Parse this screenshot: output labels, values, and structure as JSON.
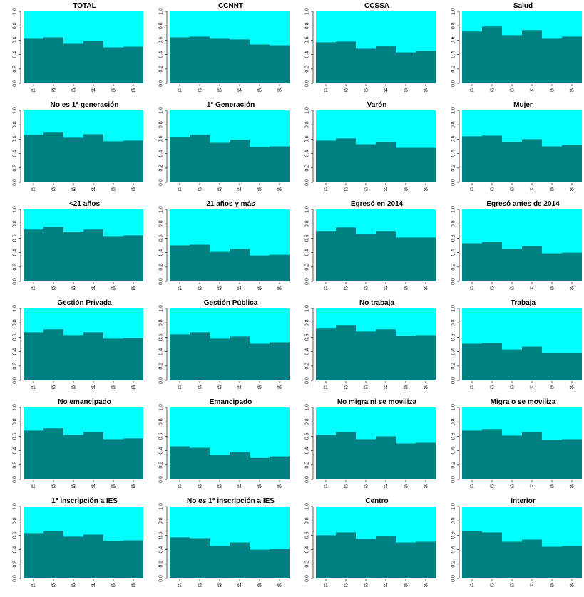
{
  "colors": {
    "fill_lower": "#008080",
    "fill_upper": "#00ffff",
    "axis": "#333333"
  },
  "chart_data": [
    {
      "type": "area",
      "title": "TOTAL",
      "x": [
        "t1",
        "t2",
        "t3",
        "t4",
        "t5",
        "t6"
      ],
      "values": [
        0.62,
        0.64,
        0.55,
        0.59,
        0.5,
        0.51
      ],
      "ylim": [
        0,
        1
      ],
      "yticks": [
        "0.0",
        "0.2",
        "0.4",
        "0.6",
        "0.8",
        "1.0"
      ]
    },
    {
      "type": "area",
      "title": "CCNNT",
      "x": [
        "t1",
        "t2",
        "t3",
        "t4",
        "t5",
        "t6"
      ],
      "values": [
        0.64,
        0.65,
        0.62,
        0.61,
        0.54,
        0.53
      ],
      "ylim": [
        0,
        1
      ],
      "yticks": [
        "0.0",
        "0.2",
        "0.4",
        "0.6",
        "0.8",
        "1.0"
      ]
    },
    {
      "type": "area",
      "title": "CCSSA",
      "x": [
        "t1",
        "t2",
        "t3",
        "t4",
        "t5",
        "t6"
      ],
      "values": [
        0.57,
        0.58,
        0.48,
        0.52,
        0.43,
        0.45
      ],
      "ylim": [
        0,
        1
      ],
      "yticks": [
        "0.0",
        "0.2",
        "0.4",
        "0.6",
        "0.8",
        "1.0"
      ]
    },
    {
      "type": "area",
      "title": "Salud",
      "x": [
        "t1",
        "t2",
        "t3",
        "t4",
        "t5",
        "t6"
      ],
      "values": [
        0.72,
        0.79,
        0.67,
        0.74,
        0.62,
        0.65
      ],
      "ylim": [
        0,
        1
      ],
      "yticks": [
        "0.0",
        "0.2",
        "0.4",
        "0.6",
        "0.8",
        "1.0"
      ]
    },
    {
      "type": "area",
      "title": "No es 1° generación",
      "x": [
        "t1",
        "t2",
        "t3",
        "t4",
        "t5",
        "t6"
      ],
      "values": [
        0.66,
        0.7,
        0.62,
        0.67,
        0.57,
        0.58
      ],
      "ylim": [
        0,
        1
      ],
      "yticks": [
        "0.0",
        "0.2",
        "0.4",
        "0.6",
        "0.8",
        "1.0"
      ]
    },
    {
      "type": "area",
      "title": "1° Generación",
      "x": [
        "t1",
        "t2",
        "t3",
        "t4",
        "t5",
        "t6"
      ],
      "values": [
        0.63,
        0.66,
        0.55,
        0.59,
        0.49,
        0.5
      ],
      "ylim": [
        0,
        1
      ],
      "yticks": [
        "0.0",
        "0.2",
        "0.4",
        "0.6",
        "0.8",
        "1.0"
      ]
    },
    {
      "type": "area",
      "title": "Varón",
      "x": [
        "t1",
        "t2",
        "t3",
        "t4",
        "t5",
        "t6"
      ],
      "values": [
        0.58,
        0.61,
        0.53,
        0.56,
        0.48,
        0.48
      ],
      "ylim": [
        0,
        1
      ],
      "yticks": [
        "0.0",
        "0.2",
        "0.4",
        "0.6",
        "0.8",
        "1.0"
      ]
    },
    {
      "type": "area",
      "title": "Mujer",
      "x": [
        "t1",
        "t2",
        "t3",
        "t4",
        "t5",
        "t6"
      ],
      "values": [
        0.64,
        0.65,
        0.56,
        0.6,
        0.5,
        0.52
      ],
      "ylim": [
        0,
        1
      ],
      "yticks": [
        "0.0",
        "0.2",
        "0.4",
        "0.6",
        "0.8",
        "1.0"
      ]
    },
    {
      "type": "area",
      "title": "<21 años",
      "x": [
        "t1",
        "t2",
        "t3",
        "t4",
        "t5",
        "t6"
      ],
      "values": [
        0.72,
        0.76,
        0.69,
        0.72,
        0.63,
        0.64
      ],
      "ylim": [
        0,
        1
      ],
      "yticks": [
        "0.0",
        "0.2",
        "0.4",
        "0.6",
        "0.8",
        "1.0"
      ]
    },
    {
      "type": "area",
      "title": "21 años y más",
      "x": [
        "t1",
        "t2",
        "t3",
        "t4",
        "t5",
        "t6"
      ],
      "values": [
        0.5,
        0.51,
        0.41,
        0.45,
        0.36,
        0.37
      ],
      "ylim": [
        0,
        1
      ],
      "yticks": [
        "0.0",
        "0.2",
        "0.4",
        "0.6",
        "0.8",
        "1.0"
      ]
    },
    {
      "type": "area",
      "title": "Egresó en 2014",
      "x": [
        "t1",
        "t2",
        "t3",
        "t4",
        "t5",
        "t6"
      ],
      "values": [
        0.7,
        0.75,
        0.66,
        0.7,
        0.61,
        0.61
      ],
      "ylim": [
        0,
        1
      ],
      "yticks": [
        "0.0",
        "0.2",
        "0.4",
        "0.6",
        "0.8",
        "1.0"
      ]
    },
    {
      "type": "area",
      "title": "Egresó antes de 2014",
      "x": [
        "t1",
        "t2",
        "t3",
        "t4",
        "t5",
        "t6"
      ],
      "values": [
        0.53,
        0.55,
        0.45,
        0.49,
        0.39,
        0.4
      ],
      "ylim": [
        0,
        1
      ],
      "yticks": [
        "0.0",
        "0.2",
        "0.4",
        "0.6",
        "0.8",
        "1.0"
      ]
    },
    {
      "type": "area",
      "title": "Gestión Privada",
      "x": [
        "t1",
        "t2",
        "t3",
        "t4",
        "t5",
        "t6"
      ],
      "values": [
        0.67,
        0.71,
        0.63,
        0.67,
        0.58,
        0.59
      ],
      "ylim": [
        0,
        1
      ],
      "yticks": [
        "0.0",
        "0.2",
        "0.4",
        "0.6",
        "0.8",
        "1.0"
      ]
    },
    {
      "type": "area",
      "title": "Gestión Pública",
      "x": [
        "t1",
        "t2",
        "t3",
        "t4",
        "t5",
        "t6"
      ],
      "values": [
        0.64,
        0.67,
        0.58,
        0.61,
        0.51,
        0.53
      ],
      "ylim": [
        0,
        1
      ],
      "yticks": [
        "0.0",
        "0.2",
        "0.4",
        "0.6",
        "0.8",
        "1.0"
      ]
    },
    {
      "type": "area",
      "title": "No trabaja",
      "x": [
        "t1",
        "t2",
        "t3",
        "t4",
        "t5",
        "t6"
      ],
      "values": [
        0.72,
        0.77,
        0.68,
        0.71,
        0.62,
        0.63
      ],
      "ylim": [
        0,
        1
      ],
      "yticks": [
        "0.0",
        "0.2",
        "0.4",
        "0.6",
        "0.8",
        "1.0"
      ]
    },
    {
      "type": "area",
      "title": "Trabaja",
      "x": [
        "t1",
        "t2",
        "t3",
        "t4",
        "t5",
        "t6"
      ],
      "values": [
        0.51,
        0.52,
        0.43,
        0.47,
        0.38,
        0.38
      ],
      "ylim": [
        0,
        1
      ],
      "yticks": [
        "0.0",
        "0.2",
        "0.4",
        "0.6",
        "0.8",
        "1.0"
      ]
    },
    {
      "type": "area",
      "title": "No emancipado",
      "x": [
        "t1",
        "t2",
        "t3",
        "t4",
        "t5",
        "t6"
      ],
      "values": [
        0.68,
        0.71,
        0.62,
        0.66,
        0.56,
        0.57
      ],
      "ylim": [
        0,
        1
      ],
      "yticks": [
        "0.0",
        "0.2",
        "0.4",
        "0.6",
        "0.8",
        "1.0"
      ]
    },
    {
      "type": "area",
      "title": "Emancipado",
      "x": [
        "t1",
        "t2",
        "t3",
        "t4",
        "t5",
        "t6"
      ],
      "values": [
        0.46,
        0.44,
        0.34,
        0.38,
        0.3,
        0.32
      ],
      "ylim": [
        0,
        1
      ],
      "yticks": [
        "0.0",
        "0.2",
        "0.4",
        "0.6",
        "0.8",
        "1.0"
      ]
    },
    {
      "type": "area",
      "title": "No migra ni se moviliza",
      "x": [
        "t1",
        "t2",
        "t3",
        "t4",
        "t5",
        "t6"
      ],
      "values": [
        0.62,
        0.66,
        0.56,
        0.6,
        0.5,
        0.51
      ],
      "ylim": [
        0,
        1
      ],
      "yticks": [
        "0.0",
        "0.2",
        "0.4",
        "0.6",
        "0.8",
        "1.0"
      ]
    },
    {
      "type": "area",
      "title": "Migra o se moviliza",
      "x": [
        "t1",
        "t2",
        "t3",
        "t4",
        "t5",
        "t6"
      ],
      "values": [
        0.68,
        0.7,
        0.61,
        0.66,
        0.55,
        0.56
      ],
      "ylim": [
        0,
        1
      ],
      "yticks": [
        "0.0",
        "0.2",
        "0.4",
        "0.6",
        "0.8",
        "1.0"
      ]
    },
    {
      "type": "area",
      "title": "1° inscripción a IES",
      "x": [
        "t1",
        "t2",
        "t3",
        "t4",
        "t5",
        "t6"
      ],
      "values": [
        0.63,
        0.66,
        0.58,
        0.61,
        0.52,
        0.53
      ],
      "ylim": [
        0,
        1
      ],
      "yticks": [
        "0.0",
        "0.2",
        "0.4",
        "0.6",
        "0.8",
        "1.0"
      ]
    },
    {
      "type": "area",
      "title": "No es 1° inscripción a IES",
      "x": [
        "t1",
        "t2",
        "t3",
        "t4",
        "t5",
        "t6"
      ],
      "values": [
        0.57,
        0.56,
        0.45,
        0.5,
        0.4,
        0.41
      ],
      "ylim": [
        0,
        1
      ],
      "yticks": [
        "0.0",
        "0.2",
        "0.4",
        "0.6",
        "0.8",
        "1.0"
      ]
    },
    {
      "type": "area",
      "title": "Centro",
      "x": [
        "t1",
        "t2",
        "t3",
        "t4",
        "t5",
        "t6"
      ],
      "values": [
        0.6,
        0.64,
        0.55,
        0.59,
        0.5,
        0.51
      ],
      "ylim": [
        0,
        1
      ],
      "yticks": [
        "0.0",
        "0.2",
        "0.4",
        "0.6",
        "0.8",
        "1.0"
      ]
    },
    {
      "type": "area",
      "title": "Interior",
      "x": [
        "t1",
        "t2",
        "t3",
        "t4",
        "t5",
        "t6"
      ],
      "values": [
        0.66,
        0.64,
        0.51,
        0.54,
        0.44,
        0.45
      ],
      "ylim": [
        0,
        1
      ],
      "yticks": [
        "0.0",
        "0.2",
        "0.4",
        "0.6",
        "0.8",
        "1.0"
      ]
    }
  ]
}
